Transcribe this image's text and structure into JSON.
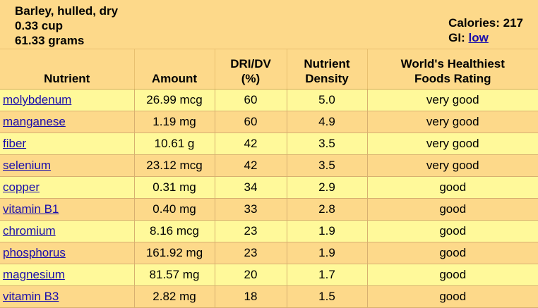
{
  "food": {
    "name": "Barley, hulled, dry",
    "serving": "0.33 cup",
    "weight": "61.33 grams",
    "calories": "Calories: 217",
    "gi_label": "GI:",
    "gi_value": "low"
  },
  "table": {
    "headers": {
      "nutrient": "Nutrient",
      "amount": "Amount",
      "dri_line1": "DRI/DV",
      "dri_line2": "(%)",
      "density_line1": "Nutrient",
      "density_line2": "Density",
      "rating_line1": "World's Healthiest",
      "rating_line2": "Foods Rating"
    },
    "rows": [
      {
        "nutrient": "molybdenum",
        "amount": "26.99 mcg",
        "dri": "60",
        "density": "5.0",
        "rating": "very good"
      },
      {
        "nutrient": "manganese",
        "amount": "1.19 mg",
        "dri": "60",
        "density": "4.9",
        "rating": "very good"
      },
      {
        "nutrient": "fiber",
        "amount": "10.61 g",
        "dri": "42",
        "density": "3.5",
        "rating": "very good"
      },
      {
        "nutrient": "selenium",
        "amount": "23.12 mcg",
        "dri": "42",
        "density": "3.5",
        "rating": "very good"
      },
      {
        "nutrient": "copper",
        "amount": "0.31 mg",
        "dri": "34",
        "density": "2.9",
        "rating": "good"
      },
      {
        "nutrient": "vitamin B1",
        "amount": "0.40 mg",
        "dri": "33",
        "density": "2.8",
        "rating": "good"
      },
      {
        "nutrient": "chromium",
        "amount": "8.16 mcg",
        "dri": "23",
        "density": "1.9",
        "rating": "good"
      },
      {
        "nutrient": "phosphorus",
        "amount": "161.92 mg",
        "dri": "23",
        "density": "1.9",
        "rating": "good"
      },
      {
        "nutrient": "magnesium",
        "amount": "81.57 mg",
        "dri": "20",
        "density": "1.7",
        "rating": "good"
      },
      {
        "nutrient": "vitamin B3",
        "amount": "2.82 mg",
        "dri": "18",
        "density": "1.5",
        "rating": "good"
      }
    ]
  },
  "colors": {
    "header_bg": "#fdd98a",
    "row_light": "#fff99a",
    "row_dark": "#fdd98a",
    "link": "#1a0dab"
  }
}
